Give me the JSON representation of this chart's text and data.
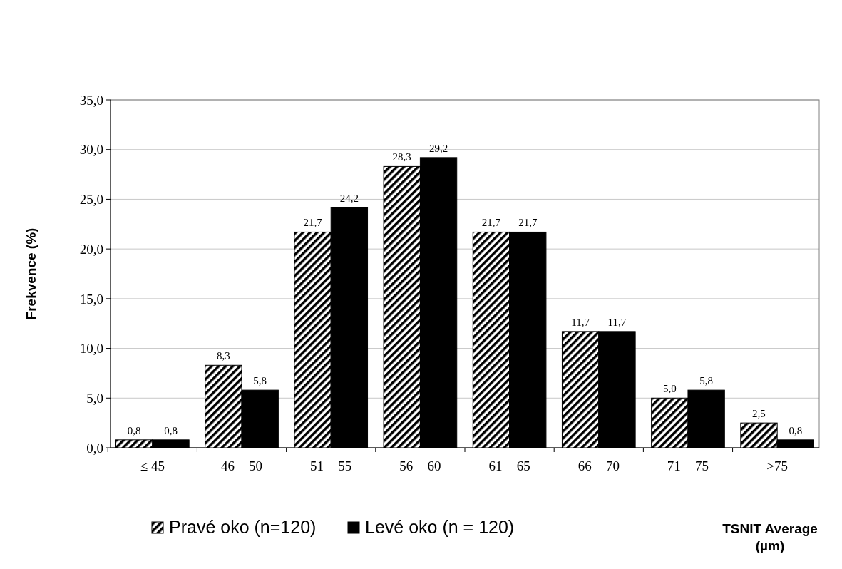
{
  "chart_data": {
    "type": "bar",
    "xlabel": "TSNIT Average (µm)",
    "ylabel": "Frekvence (%)",
    "categories": [
      "≤ 45",
      "46 − 50",
      "51 − 55",
      "56 − 60",
      "61 − 65",
      "66 − 70",
      "71 − 75",
      ">75"
    ],
    "series": [
      {
        "name": "Pravé oko  (n=120)",
        "color": "#000000",
        "values": [
          0.8,
          8.3,
          21.7,
          28.3,
          21.7,
          11.7,
          5.0,
          2.5
        ],
        "value_labels": [
          "0,8",
          "8,3",
          "21,7",
          "28,3",
          "21,7",
          "11,7",
          "5,0",
          "2,5"
        ]
      },
      {
        "name": "Levé oko  (n = 120)",
        "color": "#000000",
        "values": [
          0.8,
          5.8,
          24.2,
          29.2,
          21.7,
          11.7,
          5.8,
          0.8
        ],
        "value_labels": [
          "0,8",
          "5,8",
          "24,2",
          "29,2",
          "21,7",
          "11,7",
          "5,8",
          "0,8"
        ]
      }
    ],
    "ylim": [
      0,
      35
    ],
    "yticks": [
      {
        "value": 0,
        "label": "0,0"
      },
      {
        "value": 5,
        "label": "5,0"
      },
      {
        "value": 10,
        "label": "10,0"
      },
      {
        "value": 15,
        "label": "15,0"
      },
      {
        "value": 20,
        "label": "20,0"
      },
      {
        "value": 25,
        "label": "25,0"
      },
      {
        "value": 30,
        "label": "30,0"
      },
      {
        "value": 35,
        "label": "35,0"
      }
    ],
    "grid": "y",
    "legend": "bottom"
  }
}
